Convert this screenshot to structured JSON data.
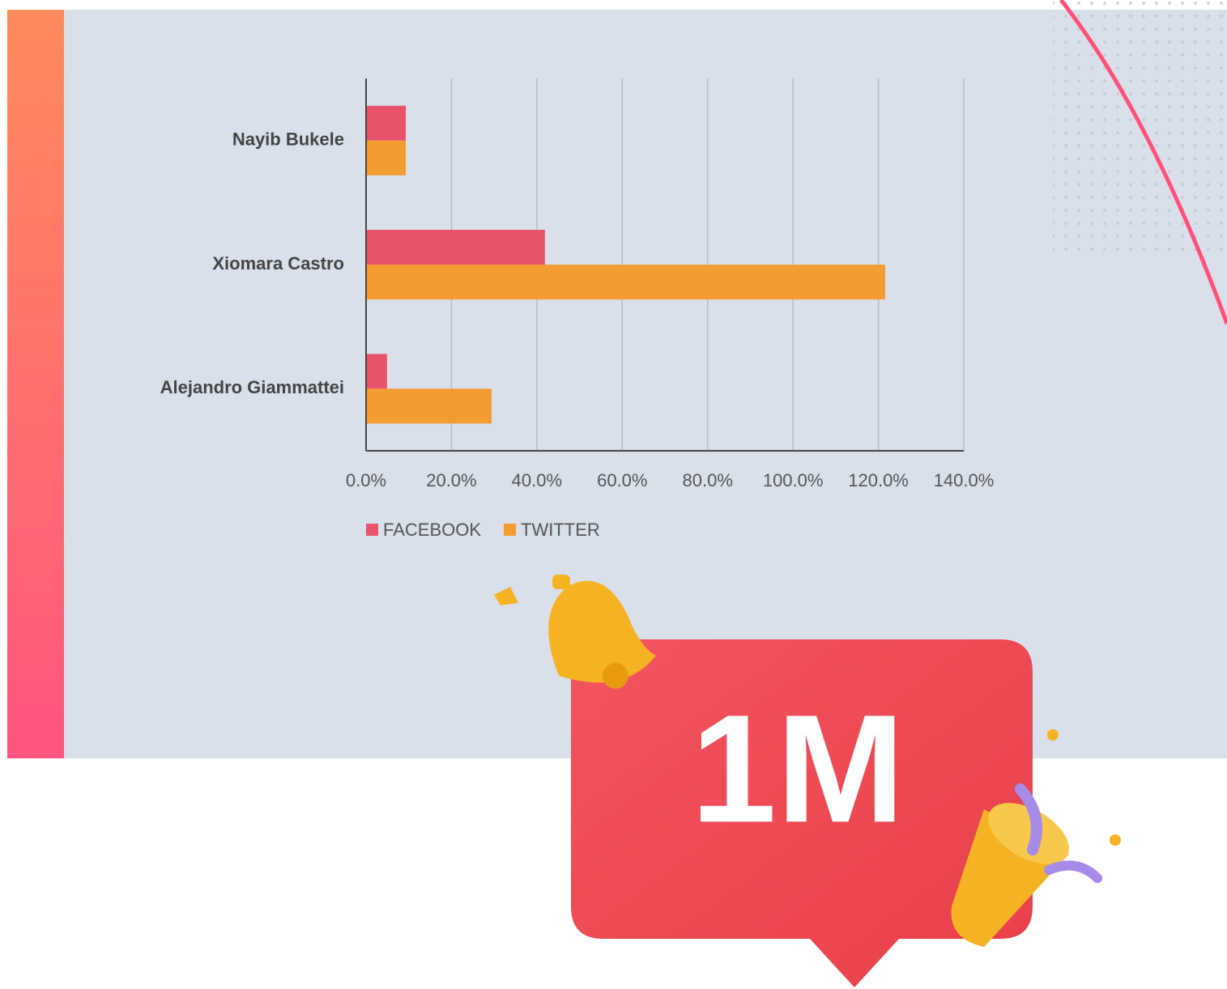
{
  "chart_data": {
    "type": "barh",
    "categories": [
      "Nayib Bukele",
      "Xiomara Castro",
      "Alejandro Giammattei"
    ],
    "series": [
      {
        "name": "FACEBOOK",
        "color": "#e8526a",
        "values": [
          9.3,
          41.9,
          4.9
        ]
      },
      {
        "name": "TWITTER",
        "color": "#f39c31",
        "values": [
          9.3,
          121.6,
          29.4
        ]
      }
    ],
    "xlim": [
      0,
      140
    ],
    "xticks": [
      {
        "value": 0,
        "label": "0.0%"
      },
      {
        "value": 20,
        "label": "20.0%"
      },
      {
        "value": 40,
        "label": "40.0%"
      },
      {
        "value": 60,
        "label": "60.0%"
      },
      {
        "value": 80,
        "label": "80.0%"
      },
      {
        "value": 100,
        "label": "100.0%"
      },
      {
        "value": 120,
        "label": "120.0%"
      },
      {
        "value": 140,
        "label": "140.0%"
      }
    ],
    "grid": true,
    "legend": "bottom"
  },
  "badge": {
    "label": "1M"
  }
}
